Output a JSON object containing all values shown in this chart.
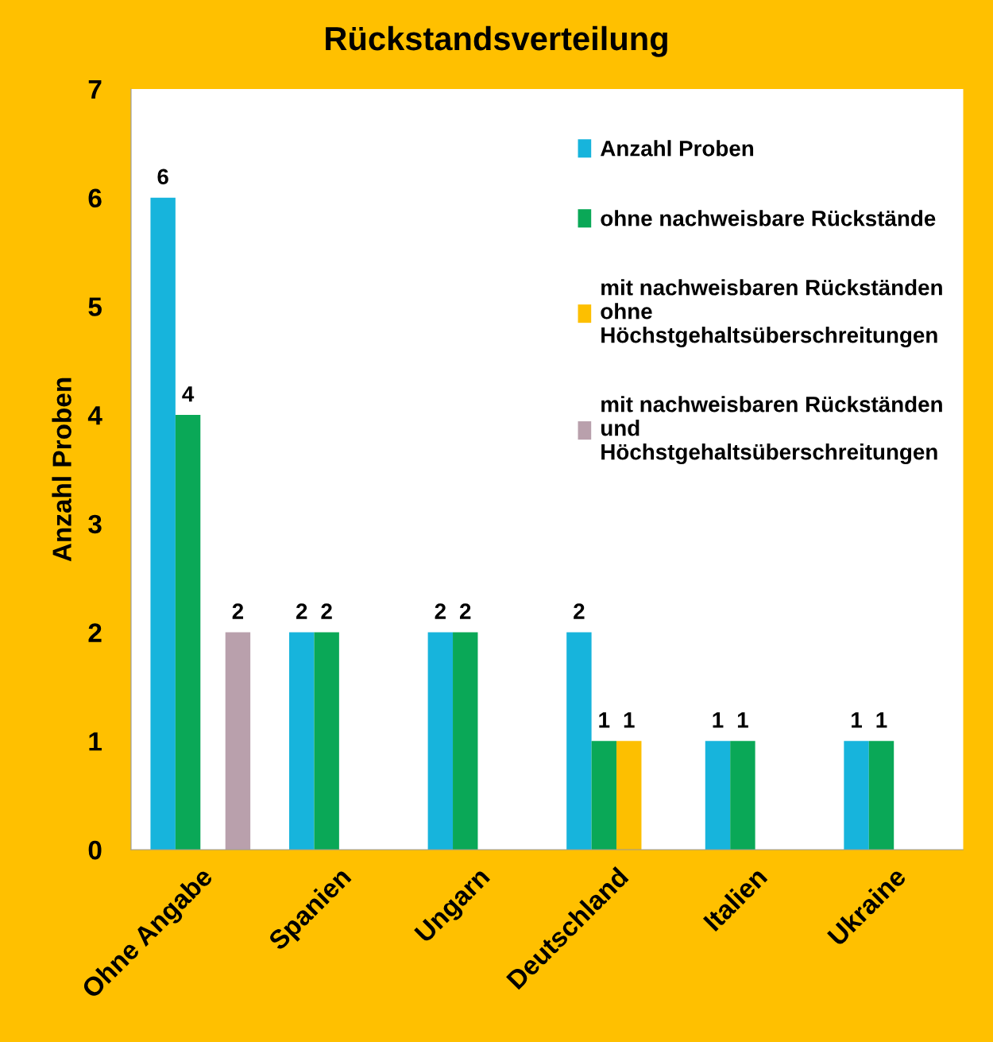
{
  "chart_data": {
    "type": "bar",
    "title": "Rückstandsverteilung",
    "ylabel": "Anzahl Proben",
    "categories": [
      "Ohne Angabe",
      "Spanien",
      "Ungarn",
      "Deutschland",
      "Italien",
      "Ukraine"
    ],
    "series": [
      {
        "name": "Anzahl Proben",
        "color": "#17b4dc",
        "values": [
          6,
          2,
          2,
          2,
          1,
          1
        ]
      },
      {
        "name": "ohne nachweisbare Rückstände",
        "color": "#0aa857",
        "values": [
          4,
          2,
          2,
          1,
          1,
          1
        ]
      },
      {
        "name": "mit nachweisbaren Rückständen\nohne\nHöchstgehaltsüberschreitungen",
        "color": "#fdbf00",
        "values": [
          null,
          null,
          null,
          1,
          null,
          null
        ]
      },
      {
        "name": "mit nachweisbaren Rückständen\nund\nHöchstgehaltsüberschreitungen",
        "color": "#b9a0ac",
        "values": [
          2,
          null,
          null,
          null,
          null,
          null
        ]
      }
    ],
    "ylim": [
      0,
      7
    ],
    "yticks": [
      0,
      1,
      2,
      3,
      4,
      5,
      6,
      7
    ],
    "grid": false,
    "legend": "top right",
    "data_labels": true
  }
}
